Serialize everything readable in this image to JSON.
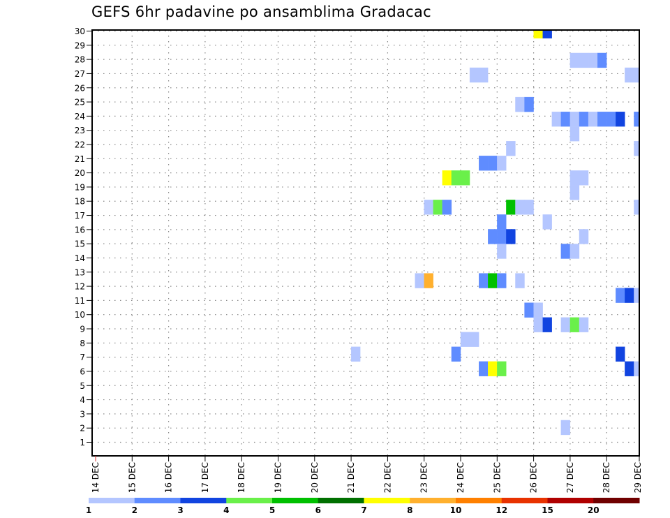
{
  "chart_data": {
    "type": "heatmap",
    "title": "GEFS 6hr padavine po ansamblima Gradacac",
    "xlabel": "",
    "ylabel": "",
    "x_tick_labels": [
      "14 DEC",
      "15 DEC",
      "16 DEC",
      "17 DEC",
      "18 DEC",
      "19 DEC",
      "20 DEC",
      "21 DEC",
      "22 DEC",
      "23 DEC",
      "24 DEC",
      "25 DEC",
      "26 DEC",
      "27 DEC",
      "28 DEC",
      "29 DEC"
    ],
    "y_tick_labels": [
      "1",
      "2",
      "3",
      "4",
      "5",
      "6",
      "7",
      "8",
      "9",
      "10",
      "11",
      "12",
      "13",
      "14",
      "15",
      "16",
      "17",
      "18",
      "19",
      "20",
      "21",
      "22",
      "23",
      "24",
      "25",
      "26",
      "27",
      "28",
      "29",
      "30"
    ],
    "x_unit": "6-hour step since 14 DEC 00Z",
    "grid": true,
    "legend": {
      "placement": "bottom",
      "levels": [
        1,
        2,
        3,
        4,
        5,
        6,
        7,
        8,
        10,
        12,
        15,
        20
      ],
      "labels": [
        "1",
        "2",
        "3",
        "4",
        "5",
        "6",
        "7",
        "8",
        "10",
        "12",
        "15",
        "20"
      ],
      "colors": [
        "#b4c6ff",
        "#5f8cff",
        "#1144e0",
        "#6af04a",
        "#00c000",
        "#007000",
        "#ffff00",
        "#ffb02e",
        "#ff8000",
        "#e83200",
        "#b00000",
        "#700000"
      ]
    },
    "rows": [
      {
        "member": 29,
        "cells": [
          [
            48,
            7.5
          ],
          [
            49,
            3.5
          ]
        ]
      },
      {
        "member": 27,
        "cells": [
          [
            52,
            1.5
          ],
          [
            53,
            1.5
          ],
          [
            54,
            1.5
          ],
          [
            55,
            2.5
          ]
        ]
      },
      {
        "member": 26,
        "cells": [
          [
            41,
            1.5
          ],
          [
            42,
            1.5
          ],
          [
            58,
            1.5
          ],
          [
            59,
            1.5
          ]
        ]
      },
      {
        "member": 24,
        "cells": [
          [
            46,
            1.5
          ],
          [
            47,
            2.5
          ]
        ]
      },
      {
        "member": 23,
        "cells": [
          [
            50,
            1.5
          ],
          [
            51,
            2.5
          ],
          [
            52,
            1.5
          ],
          [
            53,
            2.5
          ],
          [
            54,
            1.5
          ],
          [
            55,
            2.5
          ],
          [
            56,
            2.5
          ],
          [
            57,
            3.5
          ],
          [
            59,
            2.5
          ]
        ]
      },
      {
        "member": 22,
        "cells": [
          [
            52,
            1.5
          ]
        ]
      },
      {
        "member": 21,
        "cells": [
          [
            45,
            1.5
          ],
          [
            59,
            1.5
          ]
        ]
      },
      {
        "member": 20,
        "cells": [
          [
            42,
            2.5
          ],
          [
            43,
            2.5
          ],
          [
            44,
            1.5
          ]
        ]
      },
      {
        "member": 19,
        "cells": [
          [
            38,
            7.5
          ],
          [
            39,
            4.5
          ],
          [
            40,
            4.5
          ],
          [
            52,
            1.5
          ],
          [
            53,
            1.5
          ]
        ]
      },
      {
        "member": 18,
        "cells": [
          [
            52,
            1.5
          ]
        ]
      },
      {
        "member": 17,
        "cells": [
          [
            36,
            1.5
          ],
          [
            37,
            4.5
          ],
          [
            38,
            2.5
          ],
          [
            45,
            5.5
          ],
          [
            46,
            1.5
          ],
          [
            47,
            1.5
          ],
          [
            59,
            1.5
          ]
        ]
      },
      {
        "member": 16,
        "cells": [
          [
            44,
            2.5
          ],
          [
            49,
            1.5
          ]
        ]
      },
      {
        "member": 15,
        "cells": [
          [
            43,
            2.5
          ],
          [
            44,
            2.5
          ],
          [
            45,
            3.5
          ],
          [
            53,
            1.5
          ]
        ]
      },
      {
        "member": 14,
        "cells": [
          [
            44,
            1.5
          ],
          [
            51,
            2.5
          ],
          [
            52,
            1.5
          ]
        ]
      },
      {
        "member": 12,
        "cells": [
          [
            35,
            1.5
          ],
          [
            36,
            9
          ],
          [
            42,
            2.5
          ],
          [
            43,
            5.5
          ],
          [
            44,
            2.5
          ],
          [
            46,
            1.5
          ]
        ]
      },
      {
        "member": 11,
        "cells": [
          [
            57,
            2.5
          ],
          [
            58,
            3.5
          ],
          [
            59,
            1.5
          ]
        ]
      },
      {
        "member": 10,
        "cells": [
          [
            47,
            2.5
          ],
          [
            48,
            1.5
          ]
        ]
      },
      {
        "member": 9,
        "cells": [
          [
            48,
            1.5
          ],
          [
            49,
            3.5
          ],
          [
            51,
            1.5
          ],
          [
            52,
            4.5
          ],
          [
            53,
            1.5
          ]
        ]
      },
      {
        "member": 8,
        "cells": [
          [
            40,
            1.5
          ],
          [
            41,
            1.5
          ]
        ]
      },
      {
        "member": 7,
        "cells": [
          [
            28,
            1.5
          ],
          [
            39,
            2.5
          ],
          [
            57,
            3.5
          ]
        ]
      },
      {
        "member": 6,
        "cells": [
          [
            42,
            2.5
          ],
          [
            43,
            7.5
          ],
          [
            44,
            4.5
          ],
          [
            58,
            3.5
          ],
          [
            59,
            1.5
          ]
        ]
      },
      {
        "member": 2,
        "cells": [
          [
            51,
            1.5
          ]
        ]
      }
    ]
  }
}
